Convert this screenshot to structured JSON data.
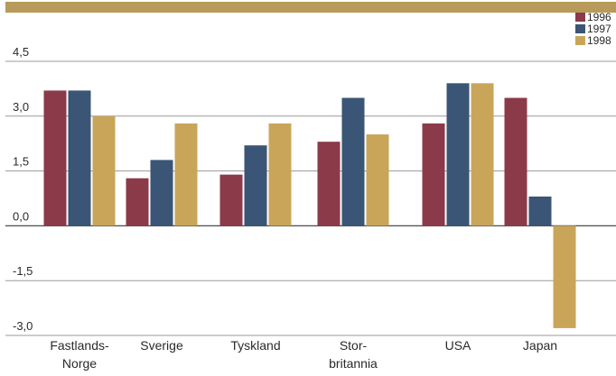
{
  "chart_data": {
    "type": "bar",
    "title": "",
    "xlabel": "",
    "ylabel": "",
    "ylim": [
      -3.0,
      4.5
    ],
    "yticks": [
      4.5,
      3.0,
      1.5,
      0.0,
      -1.5,
      -3.0
    ],
    "ytick_labels": [
      "4,5",
      "3,0",
      "1,5",
      "0,0",
      "-1,5",
      "-3,0"
    ],
    "grid": true,
    "legend_position": "top-right",
    "categories": [
      [
        "Fastlands-",
        "Norge"
      ],
      [
        "Sverige"
      ],
      [
        "Tyskland"
      ],
      [
        "Stor-",
        "britannia"
      ],
      [
        "USA"
      ],
      [
        "Japan"
      ]
    ],
    "series": [
      {
        "name": "1996",
        "color": "#8b3a4a",
        "values": [
          3.7,
          1.3,
          1.4,
          2.3,
          2.8,
          3.5
        ]
      },
      {
        "name": "1997",
        "color": "#3a5575",
        "values": [
          3.7,
          1.8,
          2.2,
          3.5,
          3.9,
          0.8
        ]
      },
      {
        "name": "1998",
        "color": "#c9a55a",
        "values": [
          3.0,
          2.8,
          2.8,
          2.5,
          3.9,
          -2.8
        ]
      }
    ]
  },
  "colors": {
    "top_band": "#b89a5a",
    "grid": "#999999",
    "axis": "#555555"
  }
}
